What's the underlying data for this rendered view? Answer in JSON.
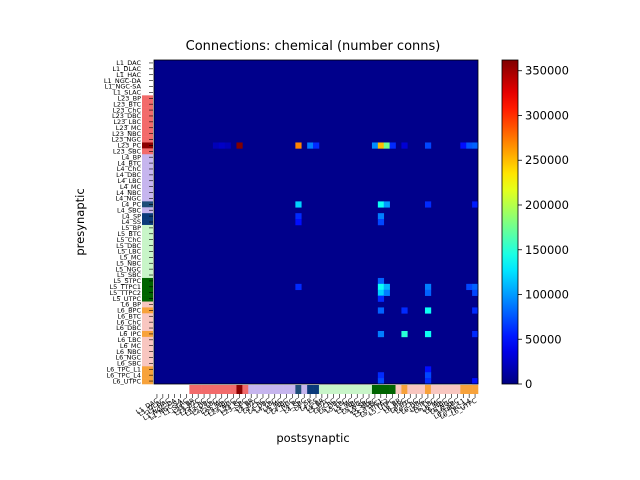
{
  "chart_data": {
    "type": "heatmap",
    "title": "Connections: chemical (number conns)",
    "xlabel": "postsynaptic",
    "ylabel": "presynaptic",
    "colormap": "jet",
    "vmin": 0,
    "vmax": 362000,
    "colorbar_ticks": [
      0,
      50000,
      100000,
      150000,
      200000,
      250000,
      300000,
      350000
    ],
    "colorbar_tick_labels": [
      "0",
      "50000",
      "100000",
      "150000",
      "200000",
      "250000",
      "300000",
      "350000"
    ],
    "cell_types": [
      "L1_DAC",
      "L1_DLAC",
      "L1_HAC",
      "L1_NGC-DA",
      "L1_NGC-SA",
      "L1_SLAC",
      "L23_BP",
      "L23_BTC",
      "L23_ChC",
      "L23_DBC",
      "L23_LBC",
      "L23_MC",
      "L23_NBC",
      "L23_NGC",
      "L23_PC",
      "L23_SBC",
      "L4_BP",
      "L4_BTC",
      "L4_ChC",
      "L4_DBC",
      "L4_LBC",
      "L4_MC",
      "L4_NBC",
      "L4_NGC",
      "L4_PC",
      "L4_SBC",
      "L4_SP",
      "L4_SS",
      "L5_BP",
      "L5_BTC",
      "L5_ChC",
      "L5_DBC",
      "L5_LBC",
      "L5_MC",
      "L5_NBC",
      "L5_NGC",
      "L5_SBC",
      "L5_STPC",
      "L5_TTPC1",
      "L5_TTPC2",
      "L5_UTPC",
      "L6_BP",
      "L6_BPC",
      "L6_BTC",
      "L6_ChC",
      "L6_DBC",
      "L6_IPC",
      "L6_LBC",
      "L6_MC",
      "L6_NBC",
      "L6_NGC",
      "L6_SBC",
      "L6_TPC_L1",
      "L6_TPC_L4",
      "L6_UTPC"
    ],
    "category_colors": [
      "#ffffff",
      "#ffffff",
      "#ffffff",
      "#ffffff",
      "#ffffff",
      "#ffffff",
      "#f26b6b",
      "#f26b6b",
      "#f26b6b",
      "#f26b6b",
      "#f26b6b",
      "#f26b6b",
      "#f26b6b",
      "#f26b6b",
      "#8b0000",
      "#f26b6b",
      "#c6b5ee",
      "#c6b5ee",
      "#c6b5ee",
      "#c6b5ee",
      "#c6b5ee",
      "#c6b5ee",
      "#c6b5ee",
      "#c6b5ee",
      "#1f4e79",
      "#c6b5ee",
      "#0b3a7a",
      "#0b3a7a",
      "#c8f5c8",
      "#c8f5c8",
      "#c8f5c8",
      "#c8f5c8",
      "#c8f5c8",
      "#c8f5c8",
      "#c8f5c8",
      "#c8f5c8",
      "#c8f5c8",
      "#006400",
      "#006400",
      "#006400",
      "#006400",
      "#f8c6c0",
      "#f7a23b",
      "#f8c6c0",
      "#f8c6c0",
      "#f8c6c0",
      "#f7a23b",
      "#f8c6c0",
      "#f8c6c0",
      "#f8c6c0",
      "#f8c6c0",
      "#f8c6c0",
      "#f7a23b",
      "#f7a23b",
      "#f7a23b"
    ],
    "background_value": 4000,
    "nonzero_cells": [
      {
        "pre": "L23_PC",
        "post": "L23_PC",
        "value": 362000
      },
      {
        "pre": "L23_PC",
        "post": "L4_PC",
        "value": 270000
      },
      {
        "pre": "L23_PC",
        "post": "L4_SP",
        "value": 90000
      },
      {
        "pre": "L23_PC",
        "post": "L4_SS",
        "value": 60000
      },
      {
        "pre": "L23_PC",
        "post": "L5_STPC",
        "value": 95000
      },
      {
        "pre": "L23_PC",
        "post": "L5_TTPC1",
        "value": 250000
      },
      {
        "pre": "L23_PC",
        "post": "L5_TTPC2",
        "value": 175000
      },
      {
        "pre": "L23_PC",
        "post": "L5_UTPC",
        "value": 60000
      },
      {
        "pre": "L23_PC",
        "post": "L6_IPC",
        "value": 70000
      },
      {
        "pre": "L23_PC",
        "post": "L6_TPC_L1",
        "value": 50000
      },
      {
        "pre": "L23_PC",
        "post": "L6_TPC_L4",
        "value": 75000
      },
      {
        "pre": "L23_PC",
        "post": "L6_UTPC",
        "value": 80000
      },
      {
        "pre": "L23_PC",
        "post": "L23_LBC",
        "value": 20000
      },
      {
        "pre": "L23_PC",
        "post": "L23_MC",
        "value": 25000
      },
      {
        "pre": "L23_PC",
        "post": "L23_NBC",
        "value": 20000
      },
      {
        "pre": "L23_PC",
        "post": "L6_BPC",
        "value": 30000
      },
      {
        "pre": "L4_PC",
        "post": "L4_PC",
        "value": 120000
      },
      {
        "pre": "L4_PC",
        "post": "L5_TTPC1",
        "value": 140000
      },
      {
        "pre": "L4_PC",
        "post": "L5_TTPC2",
        "value": 100000
      },
      {
        "pre": "L4_PC",
        "post": "L6_IPC",
        "value": 60000
      },
      {
        "pre": "L4_PC",
        "post": "L6_UTPC",
        "value": 55000
      },
      {
        "pre": "L4_SP",
        "post": "L4_PC",
        "value": 60000
      },
      {
        "pre": "L4_SP",
        "post": "L5_TTPC1",
        "value": 90000
      },
      {
        "pre": "L4_SS",
        "post": "L4_PC",
        "value": 50000
      },
      {
        "pre": "L4_SS",
        "post": "L5_TTPC1",
        "value": 70000
      },
      {
        "pre": "L5_STPC",
        "post": "L5_TTPC1",
        "value": 80000
      },
      {
        "pre": "L5_TTPC1",
        "post": "L4_PC",
        "value": 60000
      },
      {
        "pre": "L5_TTPC1",
        "post": "L5_TTPC1",
        "value": 140000
      },
      {
        "pre": "L5_TTPC1",
        "post": "L5_TTPC2",
        "value": 110000
      },
      {
        "pre": "L5_TTPC1",
        "post": "L6_IPC",
        "value": 90000
      },
      {
        "pre": "L5_TTPC1",
        "post": "L6_TPC_L4",
        "value": 70000
      },
      {
        "pre": "L5_TTPC1",
        "post": "L6_UTPC",
        "value": 80000
      },
      {
        "pre": "L5_TTPC2",
        "post": "L5_TTPC1",
        "value": 120000
      },
      {
        "pre": "L5_TTPC2",
        "post": "L5_TTPC2",
        "value": 90000
      },
      {
        "pre": "L5_TTPC2",
        "post": "L6_IPC",
        "value": 80000
      },
      {
        "pre": "L5_TTPC2",
        "post": "L6_UTPC",
        "value": 70000
      },
      {
        "pre": "L5_UTPC",
        "post": "L5_TTPC1",
        "value": 60000
      },
      {
        "pre": "L6_BPC",
        "post": "L5_TTPC1",
        "value": 80000
      },
      {
        "pre": "L6_BPC",
        "post": "L6_BPC",
        "value": 60000
      },
      {
        "pre": "L6_BPC",
        "post": "L6_IPC",
        "value": 140000
      },
      {
        "pre": "L6_BPC",
        "post": "L6_UTPC",
        "value": 60000
      },
      {
        "pre": "L6_IPC",
        "post": "L5_TTPC1",
        "value": 90000
      },
      {
        "pre": "L6_IPC",
        "post": "L6_BPC",
        "value": 150000
      },
      {
        "pre": "L6_IPC",
        "post": "L6_IPC",
        "value": 140000
      },
      {
        "pre": "L6_IPC",
        "post": "L6_UTPC",
        "value": 60000
      },
      {
        "pre": "L6_TPC_L1",
        "post": "L6_IPC",
        "value": 50000
      },
      {
        "pre": "L6_TPC_L4",
        "post": "L5_TTPC1",
        "value": 60000
      },
      {
        "pre": "L6_TPC_L4",
        "post": "L6_IPC",
        "value": 70000
      },
      {
        "pre": "L6_UTPC",
        "post": "L5_TTPC1",
        "value": 70000
      },
      {
        "pre": "L6_UTPC",
        "post": "L6_IPC",
        "value": 60000
      },
      {
        "pre": "L6_UTPC",
        "post": "L6_UTPC",
        "value": 50000
      }
    ]
  }
}
